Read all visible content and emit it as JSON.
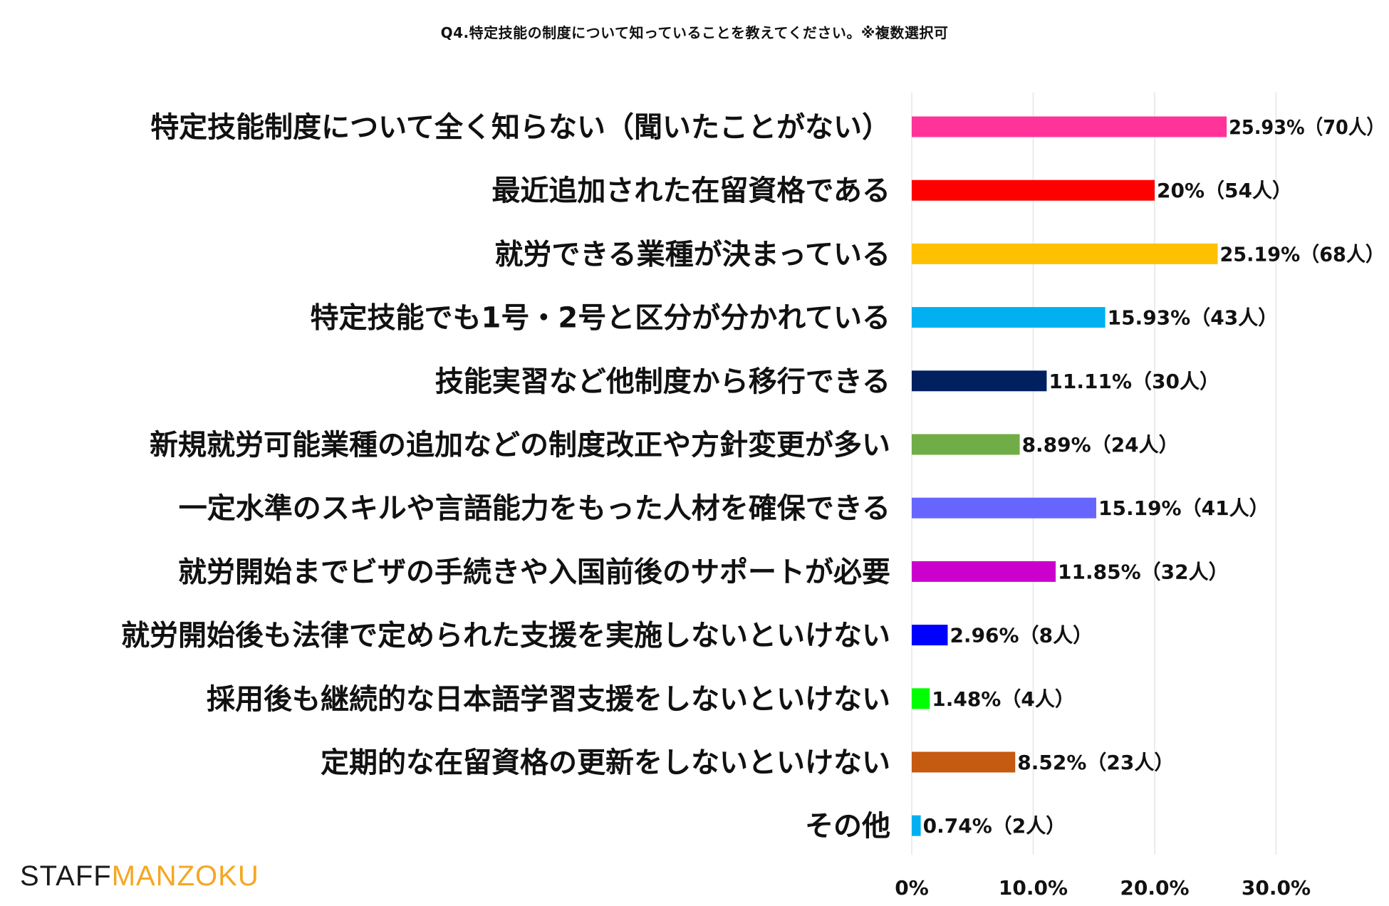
{
  "chart_data": {
    "type": "bar",
    "orientation": "horizontal",
    "title": "Q4.特定技能の制度について知っていることを教えてください。※複数選択可",
    "xlim": [
      0,
      30
    ],
    "xticks": [
      "0%",
      "10.0%",
      "20.0%",
      "30.0%"
    ],
    "grid": true,
    "categories": [
      "特定技能制度について全く知らない（聞いたことがない）",
      "最近追加された在留資格である",
      "就労できる業種が決まっている",
      "特定技能でも1号・2号と区分が分かれている",
      "技能実習など他制度から移行できる",
      "新規就労可能業種の追加などの制度改正や方針変更が多い",
      "一定水準のスキルや言語能力をもった人材を確保できる",
      "就労開始までビザの手続きや入国前後のサポートが必要",
      "就労開始後も法律で定められた支援を実施しないといけない",
      "採用後も継続的な日本語学習支援をしないといけない",
      "定期的な在留資格の更新をしないといけない",
      "その他"
    ],
    "values": [
      25.93,
      20,
      25.19,
      15.93,
      11.11,
      8.89,
      15.19,
      11.85,
      2.96,
      1.48,
      8.52,
      0.74
    ],
    "data_labels": [
      "25.93%（70人）",
      "20%（54人）",
      "25.19%（68人）",
      "15.93%（43人）",
      "11.11%（30人）",
      "8.89%（24人）",
      "15.19%（41人）",
      "11.85%（32人）",
      "2.96%（8人）",
      "1.48%（4人）",
      "8.52%（23人）",
      "0.74%（2人）"
    ],
    "colors": [
      "#ff3399",
      "#ff0000",
      "#ffc000",
      "#00b0f0",
      "#002060",
      "#70ad47",
      "#6666ff",
      "#cc00cc",
      "#0000ff",
      "#00ff00",
      "#c55a11",
      "#00b0f0"
    ]
  },
  "logo": {
    "part1": "STAFF",
    "part2": "MANZOKU"
  }
}
